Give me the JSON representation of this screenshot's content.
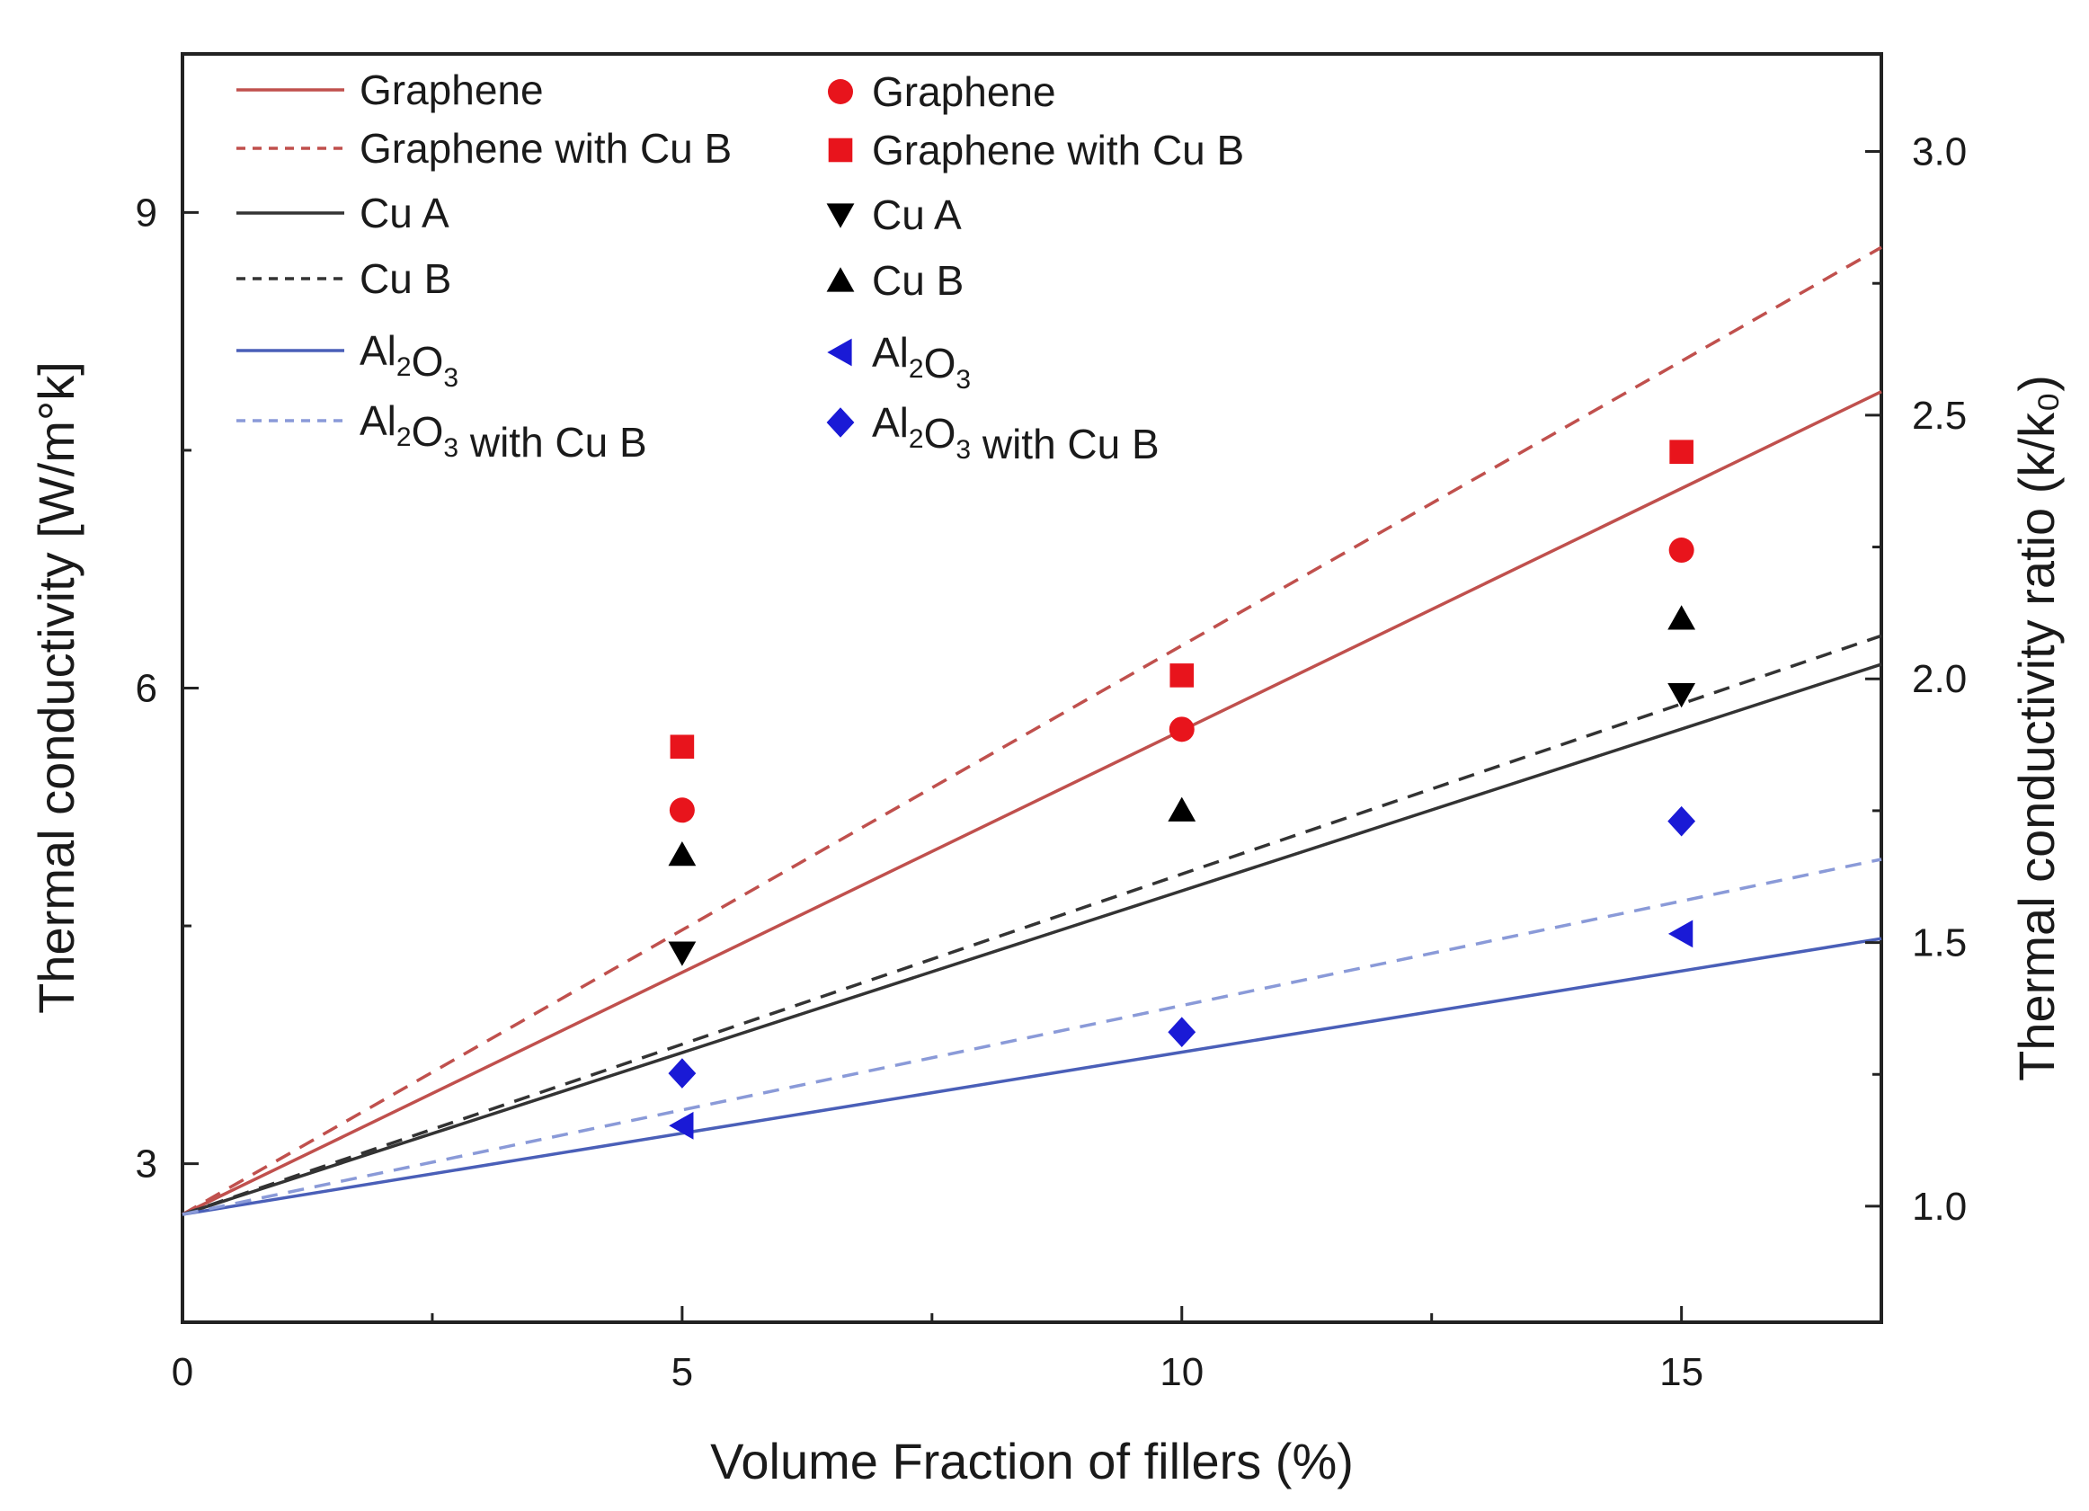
{
  "chart_data": {
    "type": "line",
    "xlabel": "Volume Fraction of fillers (%)",
    "ylabel": "Thermal conductivity [W/m°k]",
    "y2label": "Thermal conductivity ratio (k/k₀)",
    "xlim": [
      0,
      17
    ],
    "ylim": [
      2.0,
      10.0
    ],
    "y2lim": [
      0.78,
      3.185
    ],
    "x_ticks": [
      0,
      5,
      10,
      15
    ],
    "y_ticks": [
      3,
      6,
      9
    ],
    "y2_ticks": [
      1.0,
      1.5,
      2.0,
      2.5,
      3.0
    ],
    "y2_tick_labels": [
      "1.0",
      "1.5",
      "2.0",
      "2.5",
      "3.0"
    ],
    "grid": false,
    "legend_position": "top-left",
    "lines": [
      {
        "name": "Graphene",
        "x": [
          0,
          17
        ],
        "y": [
          2.68,
          7.87
        ],
        "color": "#c0504d",
        "style": "solid"
      },
      {
        "name": "Graphene with Cu B",
        "x": [
          0,
          17
        ],
        "y": [
          2.68,
          8.78
        ],
        "color": "#c0504d",
        "style": "dash"
      },
      {
        "name": "Cu A",
        "x": [
          0,
          17
        ],
        "y": [
          2.68,
          6.15
        ],
        "color": "#333333",
        "style": "solid"
      },
      {
        "name": "Cu B",
        "x": [
          0,
          17
        ],
        "y": [
          2.68,
          6.33
        ],
        "color": "#333333",
        "style": "dash"
      },
      {
        "name": "Al₂O₃",
        "x": [
          0,
          17
        ],
        "y": [
          2.68,
          4.42
        ],
        "color": "#4a5fb8",
        "style": "solid"
      },
      {
        "name": "Al₂O₃ with Cu B",
        "x": [
          0,
          17
        ],
        "y": [
          2.68,
          4.92
        ],
        "color": "#8a9ad8",
        "style": "dash"
      }
    ],
    "points": [
      {
        "name": "Graphene",
        "marker": "circle",
        "color": "#e8141c",
        "x": [
          5,
          10,
          15
        ],
        "y": [
          5.23,
          5.74,
          6.87
        ]
      },
      {
        "name": "Graphene with Cu B",
        "marker": "square",
        "color": "#e8141c",
        "x": [
          5,
          10,
          15
        ],
        "y": [
          5.63,
          6.08,
          7.49
        ]
      },
      {
        "name": "Cu A",
        "marker": "triangle-down",
        "color": "#000000",
        "x": [
          5,
          15
        ],
        "y": [
          4.33,
          5.96
        ]
      },
      {
        "name": "Cu B",
        "marker": "triangle-up",
        "color": "#000000",
        "x": [
          5,
          10,
          15
        ],
        "y": [
          4.95,
          5.23,
          6.44
        ]
      },
      {
        "name": "Al₂O₃",
        "marker": "triangle-left",
        "color": "#1a1ad6",
        "x": [
          5,
          15
        ],
        "y": [
          3.24,
          4.45
        ]
      },
      {
        "name": "Al₂O₃ with Cu B",
        "marker": "diamond",
        "color": "#1a1ad6",
        "x": [
          5,
          10,
          15
        ],
        "y": [
          3.57,
          3.83,
          5.16
        ]
      }
    ]
  }
}
